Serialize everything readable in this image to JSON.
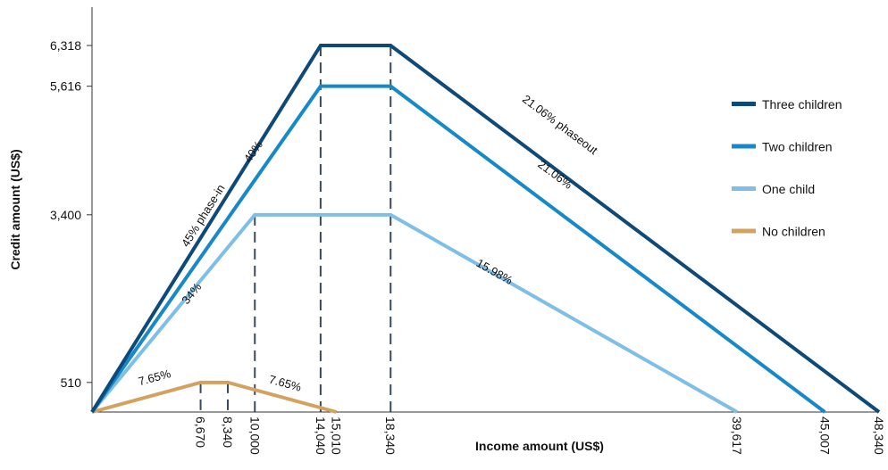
{
  "chart_data": {
    "type": "line",
    "title": "",
    "xlabel": "Income amount (US$)",
    "ylabel": "Credit amount (US$)",
    "xlim": [
      0,
      48340
    ],
    "ylim": [
      0,
      7000
    ],
    "grid": false,
    "legend_position": "right",
    "y_ticks": [
      510,
      3400,
      5616,
      6318
    ],
    "y_tick_labels": [
      "510",
      "3,400",
      "5,616",
      "6,318"
    ],
    "x_ticks": [
      6670,
      8340,
      10000,
      14040,
      15010,
      18340,
      39617,
      45007,
      48340
    ],
    "x_tick_labels": [
      "6,670",
      "8,340",
      "10,000",
      "14,040",
      "15,010",
      "18,340",
      "39,617",
      "45,007",
      "48,340"
    ],
    "series": [
      {
        "name": "Three children",
        "color": "#0d4a7a",
        "x": [
          0,
          14040,
          18340,
          48340
        ],
        "y": [
          0,
          6318,
          6318,
          0
        ]
      },
      {
        "name": "Two children",
        "color": "#1789c9",
        "x": [
          0,
          14040,
          18340,
          45007
        ],
        "y": [
          0,
          5616,
          5616,
          0
        ]
      },
      {
        "name": "One child",
        "color": "#7dbfe6",
        "x": [
          0,
          10000,
          18340,
          39617
        ],
        "y": [
          0,
          3400,
          3400,
          0
        ]
      },
      {
        "name": "No children",
        "color": "#d4a15e",
        "x": [
          0,
          6670,
          8340,
          15010
        ],
        "y": [
          0,
          510,
          510,
          0
        ]
      }
    ],
    "reference_lines": [
      {
        "x": 6670,
        "y": 510
      },
      {
        "x": 8340,
        "y": 510
      },
      {
        "x": 10000,
        "y": 3400
      },
      {
        "x": 14040,
        "y": 6318
      },
      {
        "x": 18340,
        "y": 6318
      }
    ],
    "annotations": [
      {
        "text": "45% phase-in",
        "x": 7030,
        "y": 3350
      },
      {
        "text": "40%",
        "x": 10100,
        "y": 4450
      },
      {
        "text": "34%",
        "x": 6300,
        "y": 2000
      },
      {
        "text": "7.65%",
        "x": 3900,
        "y": 530
      },
      {
        "text": "7.65%",
        "x": 11800,
        "y": 430
      },
      {
        "text": "21.06% phaseout",
        "x": 28600,
        "y": 4900
      },
      {
        "text": "21.06%",
        "x": 28300,
        "y": 4040
      },
      {
        "text": "15.98%",
        "x": 24600,
        "y": 2360
      }
    ]
  }
}
